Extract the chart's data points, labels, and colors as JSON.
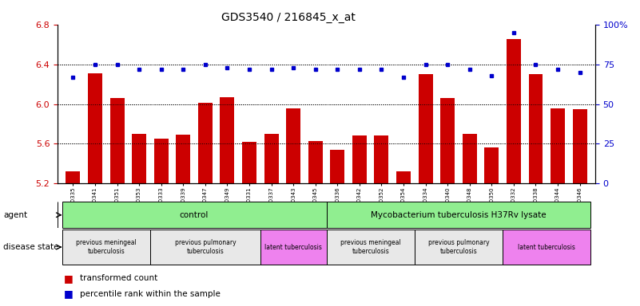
{
  "title": "GDS3540 / 216845_x_at",
  "samples": [
    "GSM280335",
    "GSM280341",
    "GSM280351",
    "GSM280353",
    "GSM280333",
    "GSM280339",
    "GSM280347",
    "GSM280349",
    "GSM280331",
    "GSM280337",
    "GSM280343",
    "GSM280345",
    "GSM280336",
    "GSM280342",
    "GSM280352",
    "GSM280354",
    "GSM280334",
    "GSM280340",
    "GSM280348",
    "GSM280350",
    "GSM280332",
    "GSM280338",
    "GSM280344",
    "GSM280346"
  ],
  "transformed_count": [
    5.32,
    6.31,
    6.06,
    5.7,
    5.65,
    5.69,
    6.01,
    6.07,
    5.62,
    5.7,
    5.96,
    5.63,
    5.54,
    5.68,
    5.68,
    5.32,
    6.3,
    6.06,
    5.7,
    5.56,
    6.65,
    6.3,
    5.96,
    5.95
  ],
  "percentile_rank": [
    67,
    75,
    75,
    72,
    72,
    72,
    75,
    73,
    72,
    72,
    73,
    72,
    72,
    72,
    72,
    67,
    75,
    75,
    72,
    68,
    95,
    75,
    72,
    70
  ],
  "ylim_left": [
    5.2,
    6.8
  ],
  "ylim_right": [
    0,
    100
  ],
  "yticks_left": [
    5.2,
    5.6,
    6.0,
    6.4,
    6.8
  ],
  "yticks_right": [
    0,
    25,
    50,
    75,
    100
  ],
  "ytick_right_labels": [
    "0",
    "25",
    "50",
    "75",
    "100%"
  ],
  "bar_color": "#cc0000",
  "dot_color": "#0000cc",
  "agent_groups": [
    {
      "label": "control",
      "start": 0,
      "end": 11,
      "color": "#90ee90"
    },
    {
      "label": "Mycobacterium tuberculosis H37Rv lysate",
      "start": 12,
      "end": 23,
      "color": "#90ee90"
    }
  ],
  "disease_groups": [
    {
      "label": "previous meningeal\ntuberculosis",
      "start": 0,
      "end": 3,
      "color": "#e8e8e8"
    },
    {
      "label": "previous pulmonary\ntuberculosis",
      "start": 4,
      "end": 8,
      "color": "#e8e8e8"
    },
    {
      "label": "latent tuberculosis",
      "start": 9,
      "end": 11,
      "color": "#ee82ee"
    },
    {
      "label": "previous meningeal\ntuberculosis",
      "start": 12,
      "end": 15,
      "color": "#e8e8e8"
    },
    {
      "label": "previous pulmonary\ntuberculosis",
      "start": 16,
      "end": 19,
      "color": "#e8e8e8"
    },
    {
      "label": "latent tuberculosis",
      "start": 20,
      "end": 23,
      "color": "#ee82ee"
    }
  ],
  "background_color": "#ffffff"
}
